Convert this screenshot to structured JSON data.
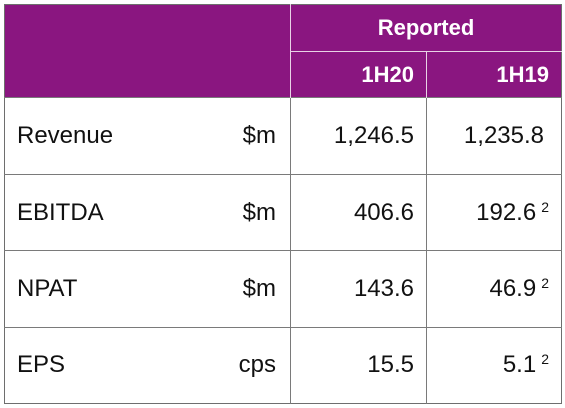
{
  "table": {
    "group_header": "Reported",
    "periods": [
      "1H20",
      "1H19"
    ],
    "rows": [
      {
        "metric": "Revenue",
        "unit": "$m",
        "h20": "1,246.5",
        "h19": "1,235.8",
        "h19_note": ""
      },
      {
        "metric": "EBITDA",
        "unit": "$m",
        "h20": "406.6",
        "h19": "192.6",
        "h19_note": "2"
      },
      {
        "metric": "NPAT",
        "unit": "$m",
        "h20": "143.6",
        "h19": "46.9",
        "h19_note": "2"
      },
      {
        "metric": "EPS",
        "unit": "cps",
        "h20": "15.5",
        "h19": "5.1",
        "h19_note": "2"
      }
    ]
  },
  "colors": {
    "header_bg": "#8a1680",
    "header_text": "#ffffff",
    "border": "#7a7a7a"
  }
}
